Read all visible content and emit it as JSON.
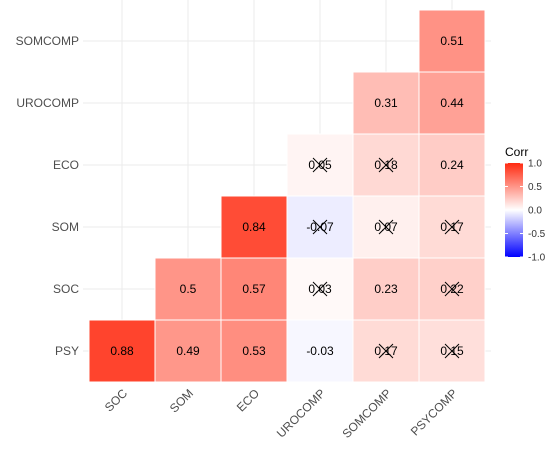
{
  "chart_data": {
    "type": "heatmap",
    "title": "",
    "xlabel": "",
    "ylabel": "",
    "x_labels": [
      "SOC",
      "SOM",
      "ECO",
      "UROCOMP",
      "SOMCOMP",
      "PSYCOMP"
    ],
    "y_labels": [
      "PSY",
      "SOC",
      "SOM",
      "ECO",
      "UROCOMP",
      "SOMCOMP"
    ],
    "cells": [
      {
        "x": "SOC",
        "y": "PSY",
        "value": 0.88,
        "label": "0.88",
        "insignificant": false
      },
      {
        "x": "SOM",
        "y": "PSY",
        "value": 0.49,
        "label": "0.49",
        "insignificant": false
      },
      {
        "x": "ECO",
        "y": "PSY",
        "value": 0.53,
        "label": "0.53",
        "insignificant": false
      },
      {
        "x": "UROCOMP",
        "y": "PSY",
        "value": -0.03,
        "label": "-0.03",
        "insignificant": false
      },
      {
        "x": "SOMCOMP",
        "y": "PSY",
        "value": 0.17,
        "label": "0.17",
        "insignificant": true
      },
      {
        "x": "PSYCOMP",
        "y": "PSY",
        "value": 0.15,
        "label": "0.15",
        "insignificant": true
      },
      {
        "x": "SOM",
        "y": "SOC",
        "value": 0.5,
        "label": "0.5",
        "insignificant": false
      },
      {
        "x": "ECO",
        "y": "SOC",
        "value": 0.57,
        "label": "0.57",
        "insignificant": false
      },
      {
        "x": "UROCOMP",
        "y": "SOC",
        "value": 0.03,
        "label": "0.03",
        "insignificant": true
      },
      {
        "x": "SOMCOMP",
        "y": "SOC",
        "value": 0.23,
        "label": "0.23",
        "insignificant": false
      },
      {
        "x": "PSYCOMP",
        "y": "SOC",
        "value": 0.22,
        "label": "0.22",
        "insignificant": true
      },
      {
        "x": "ECO",
        "y": "SOM",
        "value": 0.84,
        "label": "0.84",
        "insignificant": false
      },
      {
        "x": "UROCOMP",
        "y": "SOM",
        "value": -0.07,
        "label": "-0.07",
        "insignificant": true
      },
      {
        "x": "SOMCOMP",
        "y": "SOM",
        "value": 0.07,
        "label": "0.07",
        "insignificant": true
      },
      {
        "x": "PSYCOMP",
        "y": "SOM",
        "value": 0.17,
        "label": "0.17",
        "insignificant": true
      },
      {
        "x": "UROCOMP",
        "y": "ECO",
        "value": 0.05,
        "label": "0.05",
        "insignificant": true
      },
      {
        "x": "SOMCOMP",
        "y": "ECO",
        "value": 0.18,
        "label": "0.18",
        "insignificant": true
      },
      {
        "x": "PSYCOMP",
        "y": "ECO",
        "value": 0.24,
        "label": "0.24",
        "insignificant": false
      },
      {
        "x": "SOMCOMP",
        "y": "UROCOMP",
        "value": 0.31,
        "label": "0.31",
        "insignificant": false
      },
      {
        "x": "PSYCOMP",
        "y": "UROCOMP",
        "value": 0.44,
        "label": "0.44",
        "insignificant": false
      },
      {
        "x": "PSYCOMP",
        "y": "SOMCOMP",
        "value": 0.51,
        "label": "0.51",
        "insignificant": false
      }
    ],
    "legend": {
      "title": "Corr",
      "ticks": [
        "1.0",
        "0.5",
        "0.0",
        "-0.5",
        "-1.0"
      ],
      "tick_values": [
        1.0,
        0.5,
        0.0,
        -0.5,
        -1.0
      ],
      "range": [
        -1.0,
        1.0
      ],
      "placement": "right"
    },
    "colors": {
      "low": "#0000ff",
      "mid": "#ffffff",
      "high": "#ff2a10"
    },
    "grid": true
  }
}
